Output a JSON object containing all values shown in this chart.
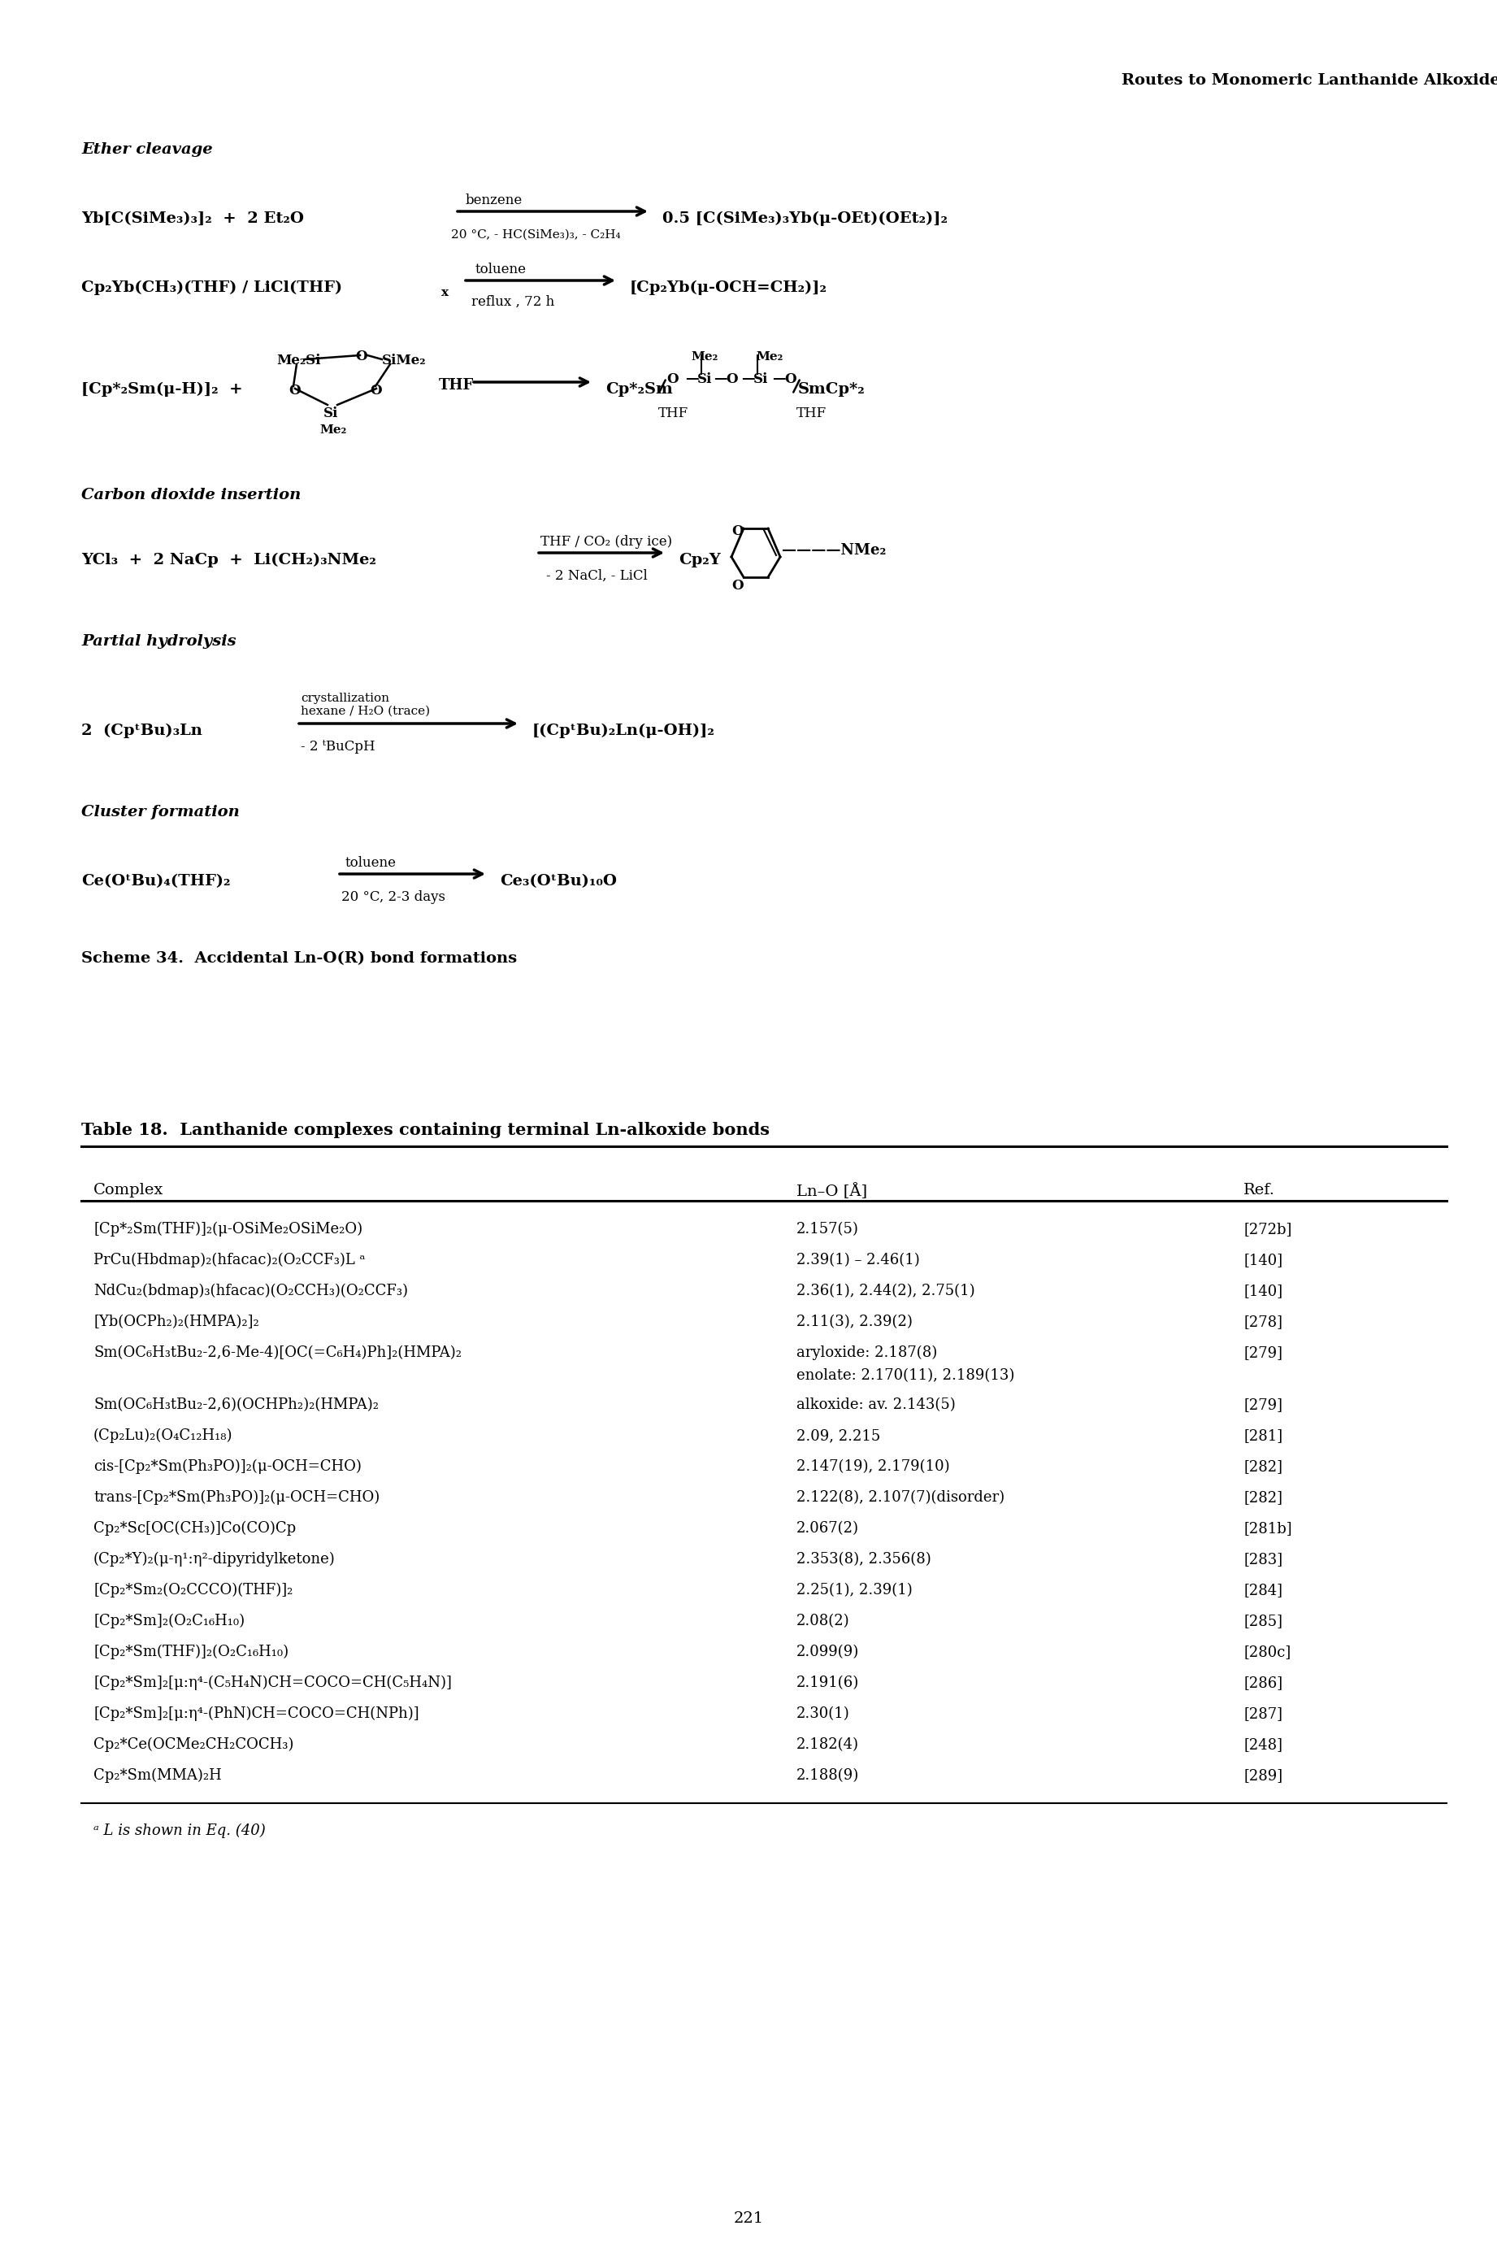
{
  "page_title": "Routes to Monomeric Lanthanide Alkoxides",
  "page_number": "221",
  "background_color": "#ffffff",
  "text_color": "#000000",
  "scheme_title": "Scheme 34.  Accidental Ln-O(R) bond formations",
  "table_title": "Table 18.  Lanthanide complexes containing terminal Ln-alkoxide bonds",
  "table_headers": [
    "Complex",
    "Ln–O [Å]",
    "Ref."
  ],
  "table_rows": [
    [
      "[Cp*₂Sm(THF)]₂(μ-OSiMe₂OSiMe₂O)",
      "2.157(5)",
      "[272b]"
    ],
    [
      "PrCu(Hbdmap)₂(hfacac)₂(O₂CCF₃)L ᵃ",
      "2.39(1) – 2.46(1)",
      "[140]"
    ],
    [
      "NdCu₂(bdmap)₃(hfacac)(O₂CCH₃)(O₂CCF₃)",
      "2.36(1), 2.44(2), 2.75(1)",
      "[140]"
    ],
    [
      "[Yb(OCPh₂)₂(HMPA)₂]₂",
      "2.11(3), 2.39(2)",
      "[278]"
    ],
    [
      "Sm(OC₆H₃tBu₂-2,6-Me-4)[OC(=C₆H₄)Ph]₂(HMPA)₂",
      "aryloxide: 2.187(8)\nenolate: 2.170(11), 2.189(13)",
      "[279]"
    ],
    [
      "Sm(OC₆H₃tBu₂-2,6)(OCHPh₂)₂(HMPA)₂",
      "alkoxide: av. 2.143(5)",
      "[279]"
    ],
    [
      "(Cp₂Lu)₂(O₄C₁₂H₁₈)",
      "2.09, 2.215",
      "[281]"
    ],
    [
      "cis-[Cp₂*Sm(Ph₃PO)]₂(μ-OCH=CHO)",
      "2.147(19), 2.179(10)",
      "[282]"
    ],
    [
      "trans-[Cp₂*Sm(Ph₃PO)]₂(μ-OCH=CHO)",
      "2.122(8), 2.107(7)(disorder)",
      "[282]"
    ],
    [
      "Cp₂*Sc[OC(CH₃)]Co(CO)Cp",
      "2.067(2)",
      "[281b]"
    ],
    [
      "(Cp₂*Y)₂(μ-η¹:η²-dipyridylketone)",
      "2.353(8), 2.356(8)",
      "[283]"
    ],
    [
      "[Cp₂*Sm₂(O₂CCCO)(THF)]₂",
      "2.25(1), 2.39(1)",
      "[284]"
    ],
    [
      "[Cp₂*Sm]₂(O₂C₁₆H₁₀)",
      "2.08(2)",
      "[285]"
    ],
    [
      "[Cp₂*Sm(THF)]₂(O₂C₁₆H₁₀)",
      "2.099(9)",
      "[280c]"
    ],
    [
      "[Cp₂*Sm]₂[μ:η⁴-(C₅H₄N)CH=COCO=CH(C₅H₄N)]",
      "2.191(6)",
      "[286]"
    ],
    [
      "[Cp₂*Sm]₂[μ:η⁴-(PhN)CH=COCO=CH(NPh)]",
      "2.30(1)",
      "[287]"
    ],
    [
      "Cp₂*Ce(OCMe₂CH₂COCH₃)",
      "2.182(4)",
      "[248]"
    ],
    [
      "Cp₂*Sm(MMA)₂H",
      "2.188(9)",
      "[289]"
    ]
  ],
  "footnote": "ᵃ L is shown in Eq. (40)",
  "section_labels": [
    "Ether cleavage",
    "Carbon dioxide insertion",
    "Partial hydrolysis",
    "Cluster formation"
  ]
}
